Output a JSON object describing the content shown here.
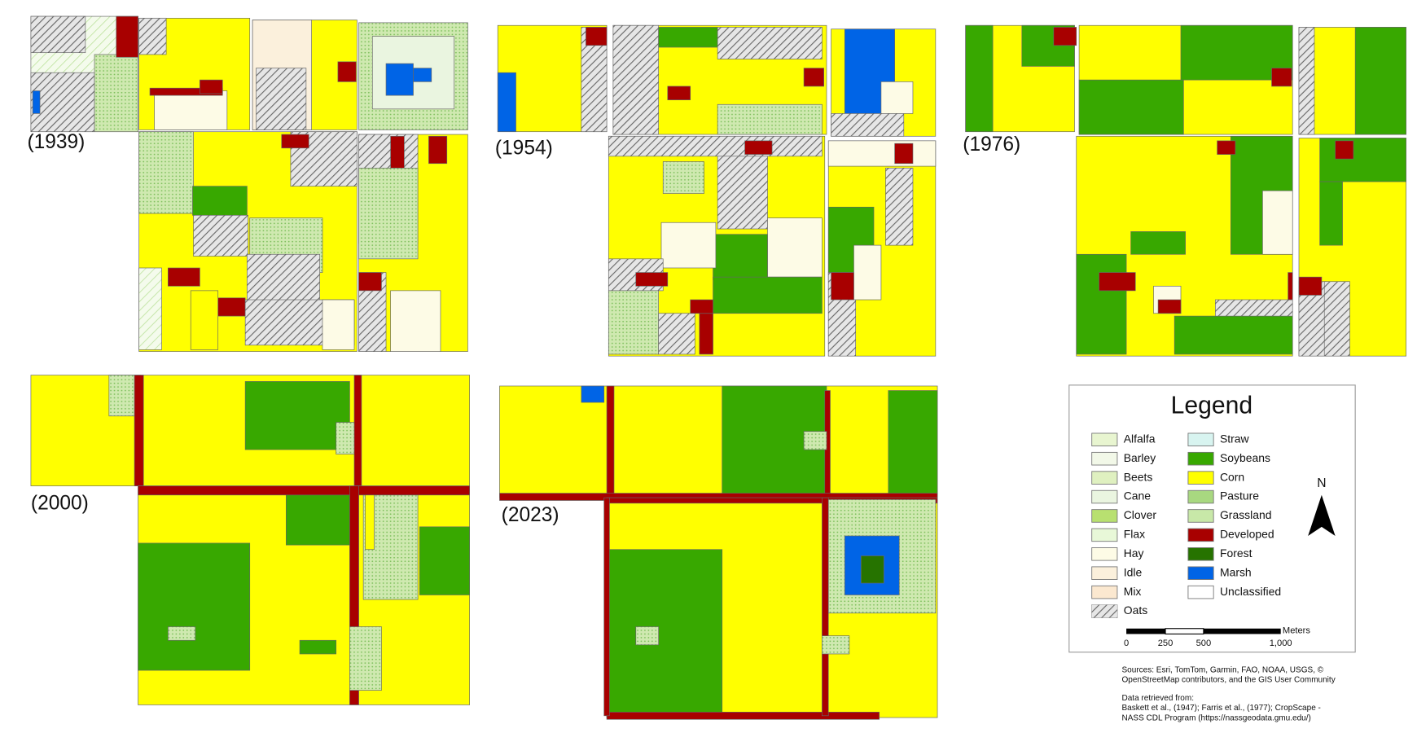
{
  "panels": [
    {
      "label": "(1939)"
    },
    {
      "label": "(1954)"
    },
    {
      "label": "(1976)"
    },
    {
      "label": "(2000)"
    },
    {
      "label": "(2023)"
    }
  ],
  "legend": {
    "title": "Legend",
    "items": [
      {
        "label": "Alfalfa",
        "color": "#e8f5d0"
      },
      {
        "label": "Barley",
        "color": "#f2f8e8"
      },
      {
        "label": "Beets",
        "color": "#dff0c0"
      },
      {
        "label": "Cane",
        "color": "#eaf5e0"
      },
      {
        "label": "Clover",
        "color": "#b8e070"
      },
      {
        "label": "Flax",
        "color": "#e8f8d8"
      },
      {
        "label": "Hay",
        "color": "#fdfbe6"
      },
      {
        "label": "Idle",
        "color": "#fbf0dc"
      },
      {
        "label": "Mix",
        "color": "#fbe8d0"
      },
      {
        "label": "Oats",
        "color": "#bbbbbb"
      },
      {
        "label": "Straw",
        "color": "#d8f4f0"
      },
      {
        "label": "Soybeans",
        "color": "#38a800"
      },
      {
        "label": "Corn",
        "color": "#ffff00"
      },
      {
        "label": "Pasture",
        "color": "#a8d880"
      },
      {
        "label": "Grassland",
        "color": "#c8e8a8"
      },
      {
        "label": "Developed",
        "color": "#a80000"
      },
      {
        "label": "Forest",
        "color": "#267300"
      },
      {
        "label": "Marsh",
        "color": "#0064e6"
      },
      {
        "label": "Unclassified",
        "color": "#ffffff"
      }
    ]
  },
  "north": "N",
  "scale": {
    "unit": "Meters",
    "ticks": [
      "0",
      "250",
      "500",
      "1,000"
    ]
  },
  "sources": [
    "Sources: Esri, TomTom, Garmin, FAO, NOAA, USGS, ©",
    "OpenStreetMap contributors, and the GIS User Community"
  ],
  "retrieved": [
    "Data retrieved from:",
    "Baskett et al., (1947); Farris et al., (1977); CropScape -",
    "NASS CDL Program (https://nassgeodata.gmu.edu/)"
  ]
}
